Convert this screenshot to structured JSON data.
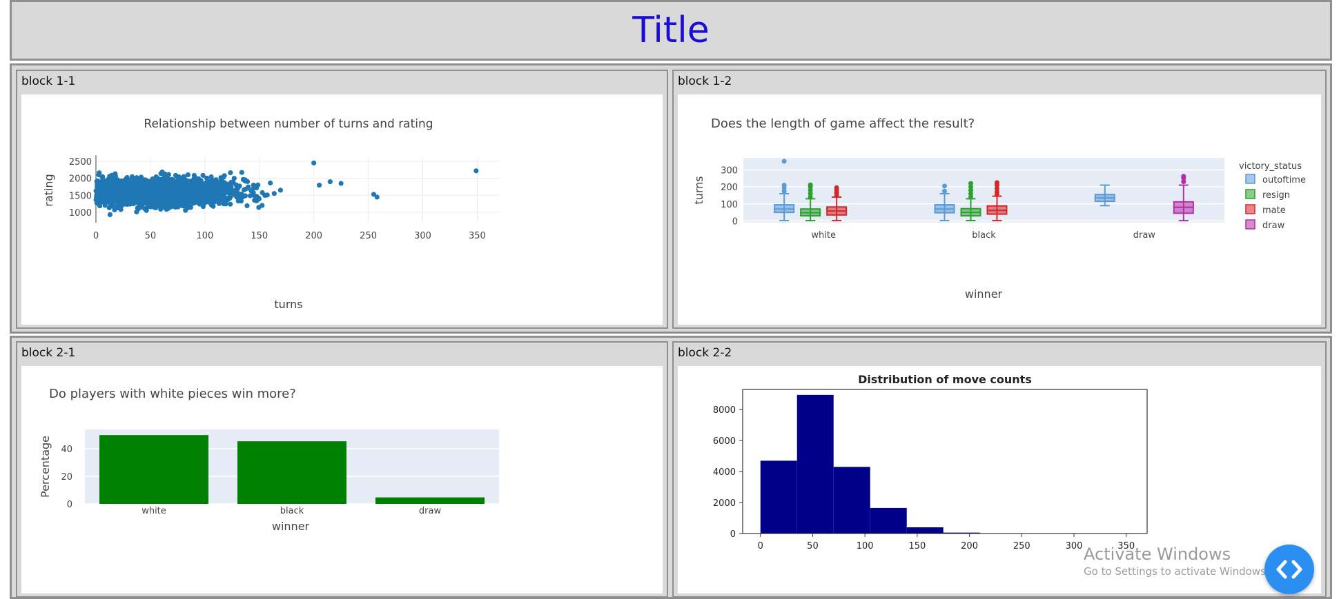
{
  "page": {
    "title": "Title"
  },
  "blocks": [
    {
      "id": "block-1-1",
      "label": "block 1-1"
    },
    {
      "id": "block-1-2",
      "label": "block 1-2"
    },
    {
      "id": "block-2-1",
      "label": "block 2-1"
    },
    {
      "id": "block-2-2",
      "label": "block 2-2"
    }
  ],
  "chart_data": [
    {
      "type": "scatter",
      "title": "Relationship between number of turns and rating",
      "xlabel": "turns",
      "ylabel": "rating",
      "xlim": [
        0,
        370
      ],
      "ylim": [
        700,
        2600
      ],
      "xticks": [
        0,
        50,
        100,
        150,
        200,
        250,
        300,
        350
      ],
      "yticks": [
        1000,
        1500,
        2000,
        2500
      ],
      "color": "#1f77b4",
      "outliers": [
        [
          200,
          2450
        ],
        [
          205,
          1800
        ],
        [
          215,
          1900
        ],
        [
          225,
          1850
        ],
        [
          255,
          1530
        ],
        [
          258,
          1450
        ],
        [
          349,
          2220
        ]
      ],
      "grid": true
    },
    {
      "type": "box",
      "title": "Does the length of game affect the result?",
      "xlabel": "winner",
      "ylabel": "turns",
      "ylim": [
        -10,
        370
      ],
      "yticks": [
        0,
        100,
        200,
        300
      ],
      "categories": [
        "white",
        "black",
        "draw"
      ],
      "legend": {
        "title": "victory_status",
        "position": "right"
      },
      "series": [
        {
          "name": "outoftime",
          "color": "#5b9bd5",
          "boxes": [
            {
              "category": "white",
              "q1": 50,
              "median": 70,
              "q3": 95,
              "lo": 2,
              "hi": 160,
              "outliers": [
                175,
                195,
                210,
                350
              ]
            },
            {
              "category": "black",
              "q1": 48,
              "median": 70,
              "q3": 95,
              "lo": 2,
              "hi": 160,
              "outliers": [
                175,
                205
              ]
            },
            {
              "category": "draw",
              "q1": 115,
              "median": 135,
              "q3": 155,
              "lo": 90,
              "hi": 210,
              "outliers": []
            }
          ]
        },
        {
          "name": "resign",
          "color": "#2ca02c",
          "boxes": [
            {
              "category": "white",
              "q1": 30,
              "median": 48,
              "q3": 70,
              "lo": 2,
              "hi": 130,
              "outliers": [
                140,
                160,
                180,
                200,
                212
              ]
            },
            {
              "category": "black",
              "q1": 30,
              "median": 50,
              "q3": 72,
              "lo": 2,
              "hi": 130,
              "outliers": [
                140,
                160,
                180,
                200,
                220
              ]
            }
          ]
        },
        {
          "name": "mate",
          "color": "#d62728",
          "boxes": [
            {
              "category": "white",
              "q1": 35,
              "median": 58,
              "q3": 82,
              "lo": 2,
              "hi": 140,
              "outliers": [
                150,
                165,
                180,
                195
              ]
            },
            {
              "category": "black",
              "q1": 40,
              "median": 62,
              "q3": 88,
              "lo": 2,
              "hi": 145,
              "outliers": [
                155,
                170,
                190,
                210,
                225
              ]
            }
          ]
        },
        {
          "name": "draw",
          "color": "#b52ea8",
          "boxes": [
            {
              "category": "draw",
              "q1": 45,
              "median": 80,
              "q3": 112,
              "lo": 2,
              "hi": 210,
              "outliers": [
                230,
                250,
                262
              ]
            }
          ]
        }
      ]
    },
    {
      "type": "bar",
      "title": "Do players with white pieces win more?",
      "xlabel": "winner",
      "ylabel": "Percentage",
      "categories": [
        "white",
        "black",
        "draw"
      ],
      "values": [
        49.9,
        45.4,
        4.7
      ],
      "ylim": [
        0,
        50
      ],
      "yticks": [
        0,
        20,
        40
      ],
      "color": "#008000"
    },
    {
      "type": "histogram",
      "title": "Distribution of move counts",
      "xlim": [
        -17,
        370
      ],
      "ylim": [
        0,
        9300
      ],
      "xticks": [
        0,
        50,
        100,
        150,
        200,
        250,
        300,
        350
      ],
      "yticks": [
        0,
        2000,
        4000,
        6000,
        8000
      ],
      "bin_edges": [
        0,
        35,
        70,
        105,
        140,
        175,
        210
      ],
      "counts": [
        4700,
        8950,
        4300,
        1650,
        400,
        60
      ],
      "color": "#00008b"
    }
  ],
  "overlay": {
    "activate_line1": "Activate Windows",
    "activate_line2": "Go to Settings to activate Windows."
  },
  "fab": {
    "icon": "code-arrows-icon"
  }
}
